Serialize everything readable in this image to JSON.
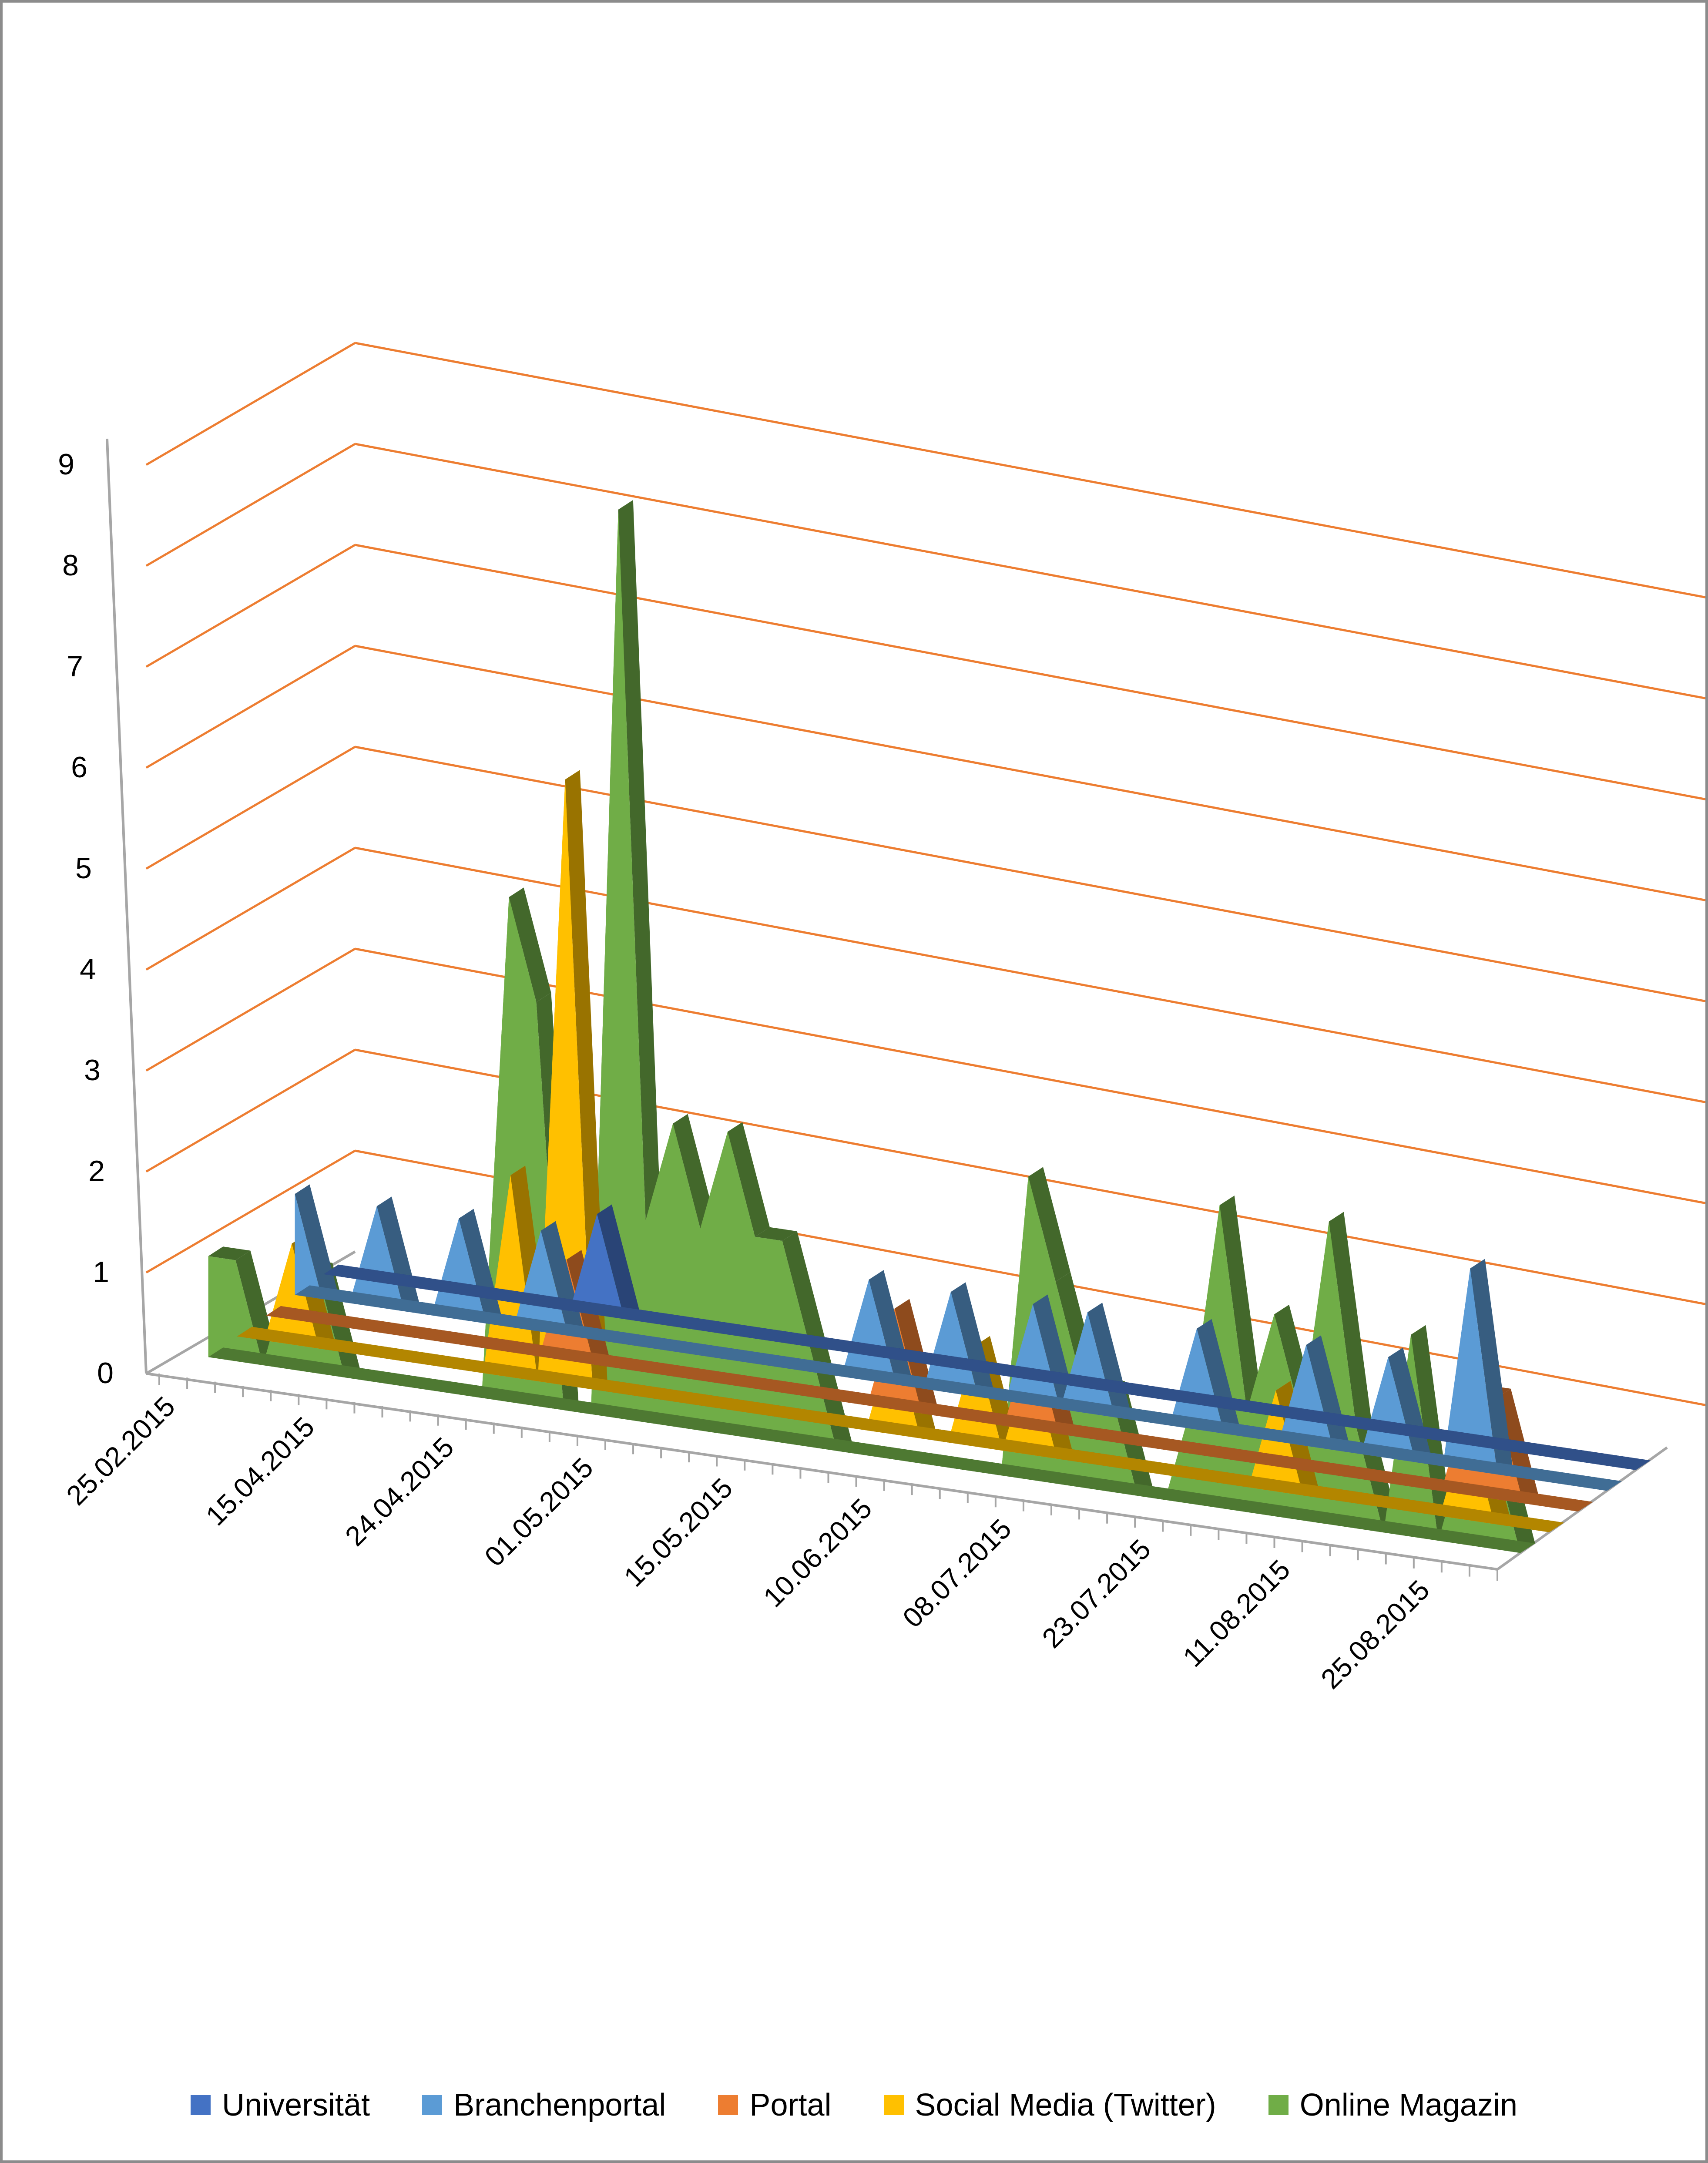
{
  "chart_data": {
    "type": "area",
    "variant": "3d-area",
    "title": "",
    "xlabel": "",
    "ylabel": "",
    "ylim": [
      0,
      9
    ],
    "yticks": [
      "0",
      "1",
      "2",
      "3",
      "4",
      "5",
      "6",
      "7",
      "8",
      "9"
    ],
    "grid": true,
    "legend_position": "bottom",
    "x": [
      "25.02.2015",
      "",
      "",
      "",
      "",
      "15.04.2015",
      "",
      "",
      "",
      "",
      "24.04.2015",
      "",
      "",
      "",
      "",
      "01.05.2015",
      "",
      "",
      "",
      "",
      "15.05.2015",
      "",
      "",
      "",
      "",
      "10.06.2015",
      "",
      "",
      "",
      "",
      "08.07.2015",
      "",
      "",
      "",
      "",
      "23.07.2015",
      "",
      "",
      "",
      "",
      "11.08.2015",
      "",
      "",
      "",
      "",
      "25.08.2015",
      "",
      "",
      ""
    ],
    "x_tick_labels": [
      "25.02.2015",
      "15.04.2015",
      "24.04.2015",
      "01.05.2015",
      "15.05.2015",
      "10.06.2015",
      "08.07.2015",
      "23.07.2015",
      "11.08.2015",
      "25.08.2015"
    ],
    "series": [
      {
        "name": "Universität",
        "color": "#4472c4",
        "values": [
          0,
          0,
          0,
          0,
          0,
          0,
          0,
          0,
          0,
          0,
          1,
          0,
          0,
          0,
          0,
          0,
          0,
          0,
          0,
          0,
          0,
          0,
          0,
          0,
          0,
          0,
          0,
          0,
          0,
          0,
          0,
          0,
          0,
          0,
          0,
          0,
          0,
          0,
          0,
          0,
          0,
          0,
          0,
          0,
          0,
          0,
          0,
          0,
          0
        ]
      },
      {
        "name": "Branchenportal",
        "color": "#5b9bd5",
        "values": [
          1,
          0,
          0,
          1,
          0,
          0,
          1,
          0,
          0,
          1,
          0,
          0,
          0,
          0,
          0,
          0,
          0,
          0,
          0,
          0,
          0,
          1,
          0,
          0,
          1,
          0,
          0,
          1,
          0,
          1,
          0,
          0,
          0,
          1,
          0,
          0,
          0,
          1,
          0,
          0,
          1,
          0,
          0,
          2,
          0,
          0,
          0,
          0,
          0
        ]
      },
      {
        "name": "Portal",
        "color": "#ed7d31",
        "values": [
          0,
          0,
          0,
          0,
          0,
          0,
          0,
          0,
          0,
          0,
          0,
          1,
          0,
          0,
          0,
          0,
          0,
          0,
          0,
          0,
          0,
          0,
          0,
          1,
          0,
          0,
          0,
          0,
          1,
          0,
          0,
          0,
          0,
          0,
          0,
          0,
          0,
          0,
          0,
          0,
          0,
          0,
          0,
          0,
          1,
          1,
          0,
          0,
          0
        ]
      },
      {
        "name": "Social Media (Twitter)",
        "color": "#ffc000",
        "values": [
          0,
          0,
          1,
          0,
          0,
          0,
          0,
          0,
          0,
          0,
          2,
          0,
          6,
          0,
          0,
          0,
          0,
          0,
          0,
          0,
          0,
          0,
          0,
          0,
          1,
          0,
          0,
          1,
          0,
          1,
          0,
          0,
          0,
          0,
          0,
          0,
          0,
          0,
          1,
          0,
          0,
          0,
          0,
          0,
          0,
          1,
          0,
          0,
          0
        ]
      },
      {
        "name": "Online Magazin",
        "color": "#70ad47",
        "values": [
          1,
          1,
          0,
          1,
          1,
          0,
          0,
          0,
          0,
          0,
          0,
          5,
          4,
          0,
          0,
          9,
          2,
          3,
          2,
          3,
          2,
          2,
          1,
          0,
          0,
          0,
          0,
          0,
          0,
          0,
          3,
          2,
          1,
          1,
          0,
          0,
          1,
          3,
          1,
          2,
          1,
          3,
          1,
          0,
          2,
          0,
          1,
          1,
          0
        ]
      }
    ]
  },
  "legend": {
    "items": [
      {
        "label": "Universität",
        "color": "#4472c4"
      },
      {
        "label": "Branchenportal",
        "color": "#5b9bd5"
      },
      {
        "label": "Portal",
        "color": "#ed7d31"
      },
      {
        "label": "Social Media (Twitter)",
        "color": "#ffc000"
      },
      {
        "label": "Online Magazin",
        "color": "#70ad47"
      }
    ]
  },
  "colors": {
    "gridline": "#ed7d31",
    "axis": "#a6a6a6",
    "frame": "#8c8c8c"
  }
}
